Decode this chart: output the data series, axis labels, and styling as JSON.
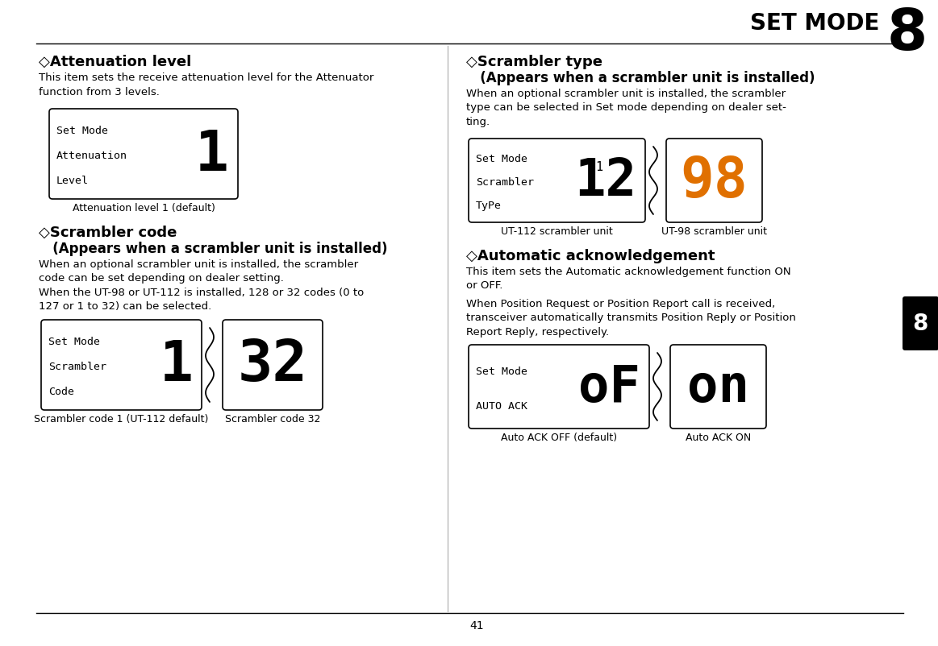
{
  "page_bg": "#ffffff",
  "title_text": "SET MODE",
  "title_number": "8",
  "page_number": "41",
  "tab_number": "8",
  "section1_header": "◇Attenuation level",
  "section1_body": "This item sets the receive attenuation level for the Attenuator\nfunction from 3 levels.",
  "section1_screen_line1": "Set Mode",
  "section1_screen_line2": "Attenuation",
  "section1_screen_line3": "Level",
  "section1_screen_value": "1",
  "section1_caption": "Attenuation level 1 (default)",
  "section2_header": "◇Scrambler code",
  "section2_subheader": "   (Appears when a scrambler unit is installed)",
  "section2_body": "When an optional scrambler unit is installed, the scrambler\ncode can be set depending on dealer setting.\nWhen the UT-98 or UT-112 is installed, 128 or 32 codes (0 to\n127 or 1 to 32) can be selected.",
  "section2_screen1_line1": "Set Mode",
  "section2_screen1_line2": "Scrambler",
  "section2_screen1_line3": "Code",
  "section2_screen1_value": "1",
  "section2_screen2_value": "32",
  "section2_caption1": "Scrambler code 1 (UT-112 default)",
  "section2_caption2": "Scrambler code 32",
  "section3_header": "◇Scrambler type",
  "section3_subheader": "   (Appears when a scrambler unit is installed)",
  "section3_body": "When an optional scrambler unit is installed, the scrambler\ntype can be selected in Set mode depending on dealer set-\nting.",
  "section3_screen1_line1": "Set Mode",
  "section3_screen1_line2": "Scrambler",
  "section3_screen1_line3": "TyPe",
  "section3_screen1_value1": "1",
  "section3_screen1_value2": "12",
  "section3_screen2_value": "98",
  "section3_caption1": "UT-112 scrambler unit",
  "section3_caption2": "UT-98 scrambler unit",
  "section4_header": "◇Automatic acknowledgement",
  "section4_body1": "This item sets the Automatic acknowledgement function ON\nor OFF.",
  "section4_body2": "When Position Request or Position Report call is received,\ntransceiver automatically transmits Position Reply or Position\nReport Reply, respectively.",
  "section4_screen1_line1": "Set Mode",
  "section4_screen1_line2": "AUTO ACK",
  "section4_screen1_value": "oF",
  "section4_screen2_value": "on",
  "section4_caption1": "Auto ACK OFF (default)",
  "section4_caption2": "Auto ACK ON",
  "screen_bg": "#ffffff",
  "screen_border": "#000000",
  "screen_text_color": "#000000",
  "screen_value_color_normal": "#000000",
  "screen_value_color_orange": "#e07000",
  "divider_color": "#aaaaaa"
}
